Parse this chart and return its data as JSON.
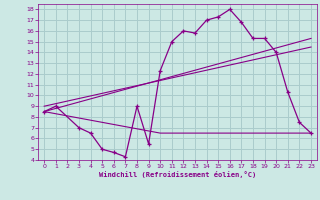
{
  "xlabel": "Windchill (Refroidissement éolien,°C)",
  "background_color": "#cce8e4",
  "grid_color": "#aacccc",
  "line_color": "#880088",
  "xlim": [
    -0.5,
    23.5
  ],
  "ylim": [
    4,
    18.5
  ],
  "xticks": [
    0,
    1,
    2,
    3,
    4,
    5,
    6,
    7,
    8,
    9,
    10,
    11,
    12,
    13,
    14,
    15,
    16,
    17,
    18,
    19,
    20,
    21,
    22,
    23
  ],
  "yticks": [
    4,
    5,
    6,
    7,
    8,
    9,
    10,
    11,
    12,
    13,
    14,
    15,
    16,
    17,
    18
  ],
  "line1_x": [
    0,
    1,
    3,
    4,
    5,
    6,
    7,
    8,
    9,
    10,
    11,
    12,
    13,
    14,
    15,
    16,
    17,
    18,
    19,
    20,
    21,
    22,
    23
  ],
  "line1_y": [
    8.5,
    9.0,
    7.0,
    6.5,
    5.0,
    4.7,
    4.3,
    9.0,
    5.5,
    12.3,
    15.0,
    16.0,
    15.8,
    17.0,
    17.3,
    18.0,
    16.8,
    15.3,
    15.3,
    14.0,
    10.3,
    7.5,
    6.5
  ],
  "line2_x": [
    0,
    10,
    11,
    12,
    13,
    14,
    15,
    16,
    17,
    18,
    19,
    20,
    23
  ],
  "line2_y": [
    8.5,
    6.5,
    6.5,
    6.5,
    6.5,
    6.5,
    6.5,
    6.5,
    6.5,
    6.5,
    6.5,
    6.5,
    6.5
  ],
  "line3_x": [
    0,
    23
  ],
  "line3_y": [
    8.5,
    15.3
  ],
  "line4_x": [
    0,
    23
  ],
  "line4_y": [
    9.0,
    14.5
  ]
}
